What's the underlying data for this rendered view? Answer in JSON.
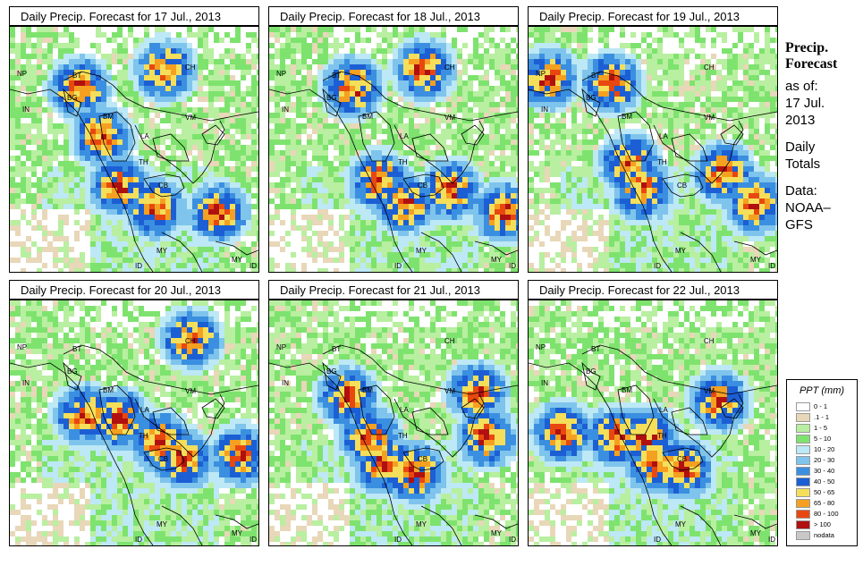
{
  "panels": [
    {
      "title": "Daily Precip. Forecast for  17 Jul., 2013",
      "seed": 17
    },
    {
      "title": "Daily Precip. Forecast for  18 Jul., 2013",
      "seed": 18
    },
    {
      "title": "Daily Precip. Forecast for  19 Jul., 2013",
      "seed": 19
    },
    {
      "title": "Daily Precip. Forecast for  20 Jul., 2013",
      "seed": 20
    },
    {
      "title": "Daily Precip. Forecast for  21 Jul., 2013",
      "seed": 21
    },
    {
      "title": "Daily Precip. Forecast for  22 Jul., 2013",
      "seed": 22
    }
  ],
  "map_labels": [
    "NP",
    "BT",
    "BG",
    "IN",
    "BM",
    "CH",
    "VM",
    "LA",
    "TH",
    "CB",
    "MY",
    "ID",
    "MY",
    "ID"
  ],
  "side": {
    "title1": "Precip.",
    "title2": "Forecast",
    "asof": "as of:",
    "date1": "17 Jul.",
    "date2": "2013",
    "daily1": "Daily",
    "daily2": "Totals",
    "data1": "Data:",
    "data2": "NOAA–",
    "data3": "GFS"
  },
  "legend": {
    "title": "PPT (mm)",
    "items": [
      {
        "label": "0 - 1",
        "color": "#ffffff"
      },
      {
        "label": ".1 - 1",
        "color": "#e8d7b8"
      },
      {
        "label": "1 - 5",
        "color": "#b8efa0"
      },
      {
        "label": "5 - 10",
        "color": "#7ee36e"
      },
      {
        "label": "10 - 20",
        "color": "#bde8f5"
      },
      {
        "label": "20 - 30",
        "color": "#7fc4ec"
      },
      {
        "label": "30 - 40",
        "color": "#3b8fe0"
      },
      {
        "label": "40 - 50",
        "color": "#1c5fd4"
      },
      {
        "label": "50 - 65",
        "color": "#f5df5a"
      },
      {
        "label": "65 - 80",
        "color": "#f5a020"
      },
      {
        "label": "80 - 100",
        "color": "#e84810"
      },
      {
        "label": "> 100",
        "color": "#b01010"
      },
      {
        "label": "nodata",
        "color": "#c8c8c8"
      }
    ]
  }
}
